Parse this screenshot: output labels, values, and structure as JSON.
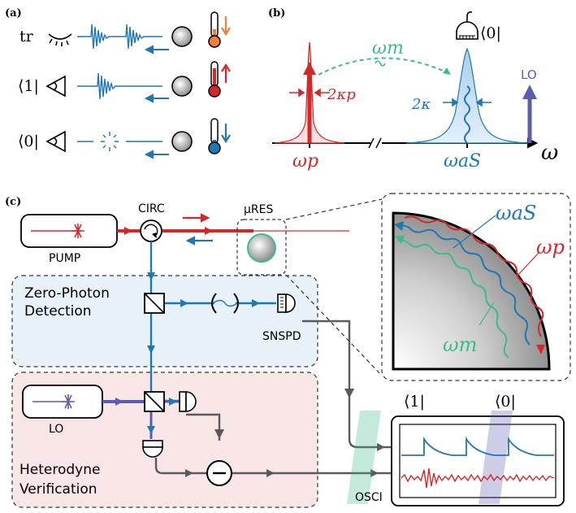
{
  "panels": {
    "a": {
      "label": "(a)",
      "rows": [
        {
          "tag": "tr"
        },
        {
          "tag": "⟨1|"
        },
        {
          "tag": "⟨0|"
        }
      ]
    },
    "b": {
      "label": "(b)",
      "omega_m": "ωm",
      "two_kappa_p": "2κp",
      "two_kappa": "2κ",
      "omega_p": "ωp",
      "omega_aS": "ωaS",
      "omega": "ω",
      "bra0": "⟨0|",
      "lo": "LO"
    },
    "c": {
      "label": "(c)",
      "pump": "PUMP",
      "circ": "CIRC",
      "mures": "μRES",
      "zero_photon_1": "Zero-Photon",
      "zero_photon_2": "Detection",
      "snspd": "SNSPD",
      "lo": "LO",
      "heterodyne_1": "Heterodyne",
      "heterodyne_2": "Verification",
      "osci": "OSCI",
      "bra1": "⟨1|",
      "bra0": "⟨0|",
      "zoom_omega_aS": "ωaS",
      "zoom_omega_p": "ωp",
      "zoom_omega_m": "ωm"
    }
  },
  "colors": {
    "blue": "#1f77b4",
    "red": "#d62728",
    "green": "#3dbb8a",
    "purple": "#5b5bb0",
    "grey": "#5a5a5a",
    "blue_box": "#e6f1f8",
    "red_box": "#f8e6e6"
  }
}
